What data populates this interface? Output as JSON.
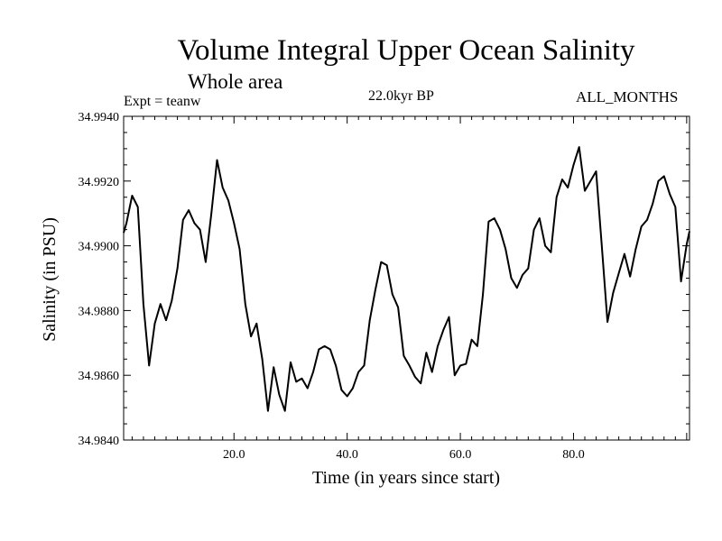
{
  "chart_data": {
    "type": "line",
    "title": "Volume Integral Upper Ocean Salinity",
    "subtitle": "Whole area",
    "experiment": "Expt = teanw",
    "period": "22.0kyr BP",
    "months": "ALL_MONTHS",
    "xlabel": "Time (in years since start)",
    "ylabel": "Salinity (in PSU)",
    "xlim": [
      0.5,
      100.5
    ],
    "ylim": [
      34.984,
      34.994
    ],
    "x_ticks": [
      20,
      40,
      60,
      80
    ],
    "x_tick_labels": [
      "20.0",
      "40.0",
      "60.0",
      "80.0"
    ],
    "y_ticks": [
      34.984,
      34.986,
      34.988,
      34.99,
      34.992,
      34.994
    ],
    "y_tick_labels": [
      "34.9840",
      "34.9860",
      "34.9880",
      "34.9900",
      "34.9920",
      "34.9940"
    ],
    "grid": false,
    "series": [
      {
        "name": "Salinity",
        "color": "#000000",
        "x": [
          0.5,
          1,
          2,
          3,
          4,
          5,
          6,
          7,
          8,
          9,
          10,
          11,
          12,
          13,
          14,
          15,
          16,
          17,
          18,
          19,
          20,
          21,
          22,
          23,
          24,
          25,
          26,
          27,
          28,
          29,
          30,
          31,
          32,
          33,
          34,
          35,
          36,
          37,
          38,
          39,
          40,
          41,
          42,
          43,
          44,
          45,
          46,
          47,
          48,
          49,
          50,
          51,
          52,
          53,
          54,
          55,
          56,
          57,
          58,
          59,
          60,
          61,
          62,
          63,
          64,
          65,
          66,
          67,
          68,
          69,
          70,
          71,
          72,
          73,
          74,
          75,
          76,
          77,
          78,
          79,
          80,
          81,
          82,
          83,
          84,
          85,
          86,
          87,
          88,
          89,
          90,
          91,
          92,
          93,
          94,
          95,
          96,
          97,
          98,
          99,
          100,
          100.5
        ],
        "values": [
          34.9904,
          34.9907,
          34.99155,
          34.9912,
          34.9882,
          34.9863,
          34.9876,
          34.9882,
          34.9877,
          34.9883,
          34.9893,
          34.9908,
          34.9911,
          34.9907,
          34.9905,
          34.9895,
          34.991,
          34.99265,
          34.9918,
          34.9914,
          34.9907,
          34.9899,
          34.9882,
          34.9872,
          34.9876,
          34.9865,
          34.9849,
          34.98625,
          34.9854,
          34.9849,
          34.9864,
          34.9858,
          34.9859,
          34.9856,
          34.9861,
          34.9868,
          34.9869,
          34.9868,
          34.9863,
          34.98555,
          34.98535,
          34.9856,
          34.9861,
          34.9863,
          34.9877,
          34.98865,
          34.9895,
          34.9894,
          34.9885,
          34.9881,
          34.9866,
          34.9863,
          34.98595,
          34.98575,
          34.9867,
          34.9861,
          34.9869,
          34.9874,
          34.9878,
          34.986,
          34.9863,
          34.98635,
          34.9871,
          34.9869,
          34.9885,
          34.99075,
          34.99085,
          34.9905,
          34.9899,
          34.989,
          34.9887,
          34.9891,
          34.9893,
          34.9905,
          34.99085,
          34.99,
          34.9898,
          34.9915,
          34.99205,
          34.9918,
          34.9925,
          34.99305,
          34.9917,
          34.992,
          34.9923,
          34.99,
          34.98765,
          34.98855,
          34.98915,
          34.98975,
          34.98905,
          34.9899,
          34.9906,
          34.9908,
          34.9913,
          34.992,
          34.99215,
          34.9916,
          34.9912,
          34.9889,
          34.99005,
          34.99045
        ]
      }
    ]
  }
}
